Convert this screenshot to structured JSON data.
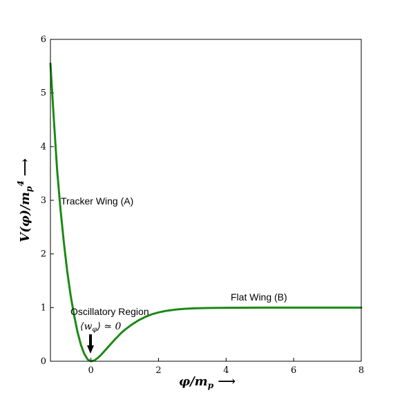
{
  "chart_data": {
    "type": "line",
    "xlabel": "φ/m_p ⟶",
    "ylabel": "V(φ)/m_p⁴ ⟶",
    "xlim": [
      -1.2,
      8
    ],
    "ylim": [
      0,
      6
    ],
    "x_ticks": [
      "0",
      "2",
      "4",
      "6",
      "8"
    ],
    "y_ticks": [
      "0",
      "1",
      "2",
      "3",
      "4",
      "5",
      "6"
    ],
    "grid": false,
    "series": [
      {
        "color": "#1a8a12",
        "x": [
          -1.2,
          -1.1,
          -1.0,
          -0.9,
          -0.8,
          -0.7,
          -0.6,
          -0.5,
          -0.4,
          -0.3,
          -0.2,
          -0.1,
          0.0,
          0.1,
          0.2,
          0.3,
          0.4,
          0.5,
          0.6,
          0.7,
          0.8,
          0.9,
          1.0,
          1.2,
          1.4,
          1.6,
          1.8,
          2.0,
          2.2,
          2.4,
          2.6,
          2.8,
          3.0,
          3.25,
          3.5,
          3.75,
          4.0,
          4.5,
          5.0,
          5.5,
          6.0,
          6.5,
          7.0,
          7.5,
          8.0
        ],
        "y": [
          5.55,
          4.52,
          3.55,
          2.82,
          2.2,
          1.66,
          1.22,
          0.86,
          0.55,
          0.31,
          0.14,
          0.035,
          0.0,
          0.015,
          0.06,
          0.12,
          0.19,
          0.26,
          0.33,
          0.4,
          0.465,
          0.53,
          0.585,
          0.68,
          0.76,
          0.825,
          0.875,
          0.91,
          0.937,
          0.955,
          0.969,
          0.978,
          0.985,
          0.99,
          0.993,
          0.995,
          0.997,
          0.998,
          0.999,
          1.0,
          1.0,
          1.0,
          1.0,
          1.0,
          1.0
        ]
      }
    ],
    "annotations": [
      {
        "text": "Tracker Wing (A)"
      },
      {
        "text": "Oscillatory Region"
      },
      {
        "text": "⟨w_φ⟩ ≃ 0"
      },
      {
        "text": "Flat Wing (B)"
      }
    ]
  }
}
